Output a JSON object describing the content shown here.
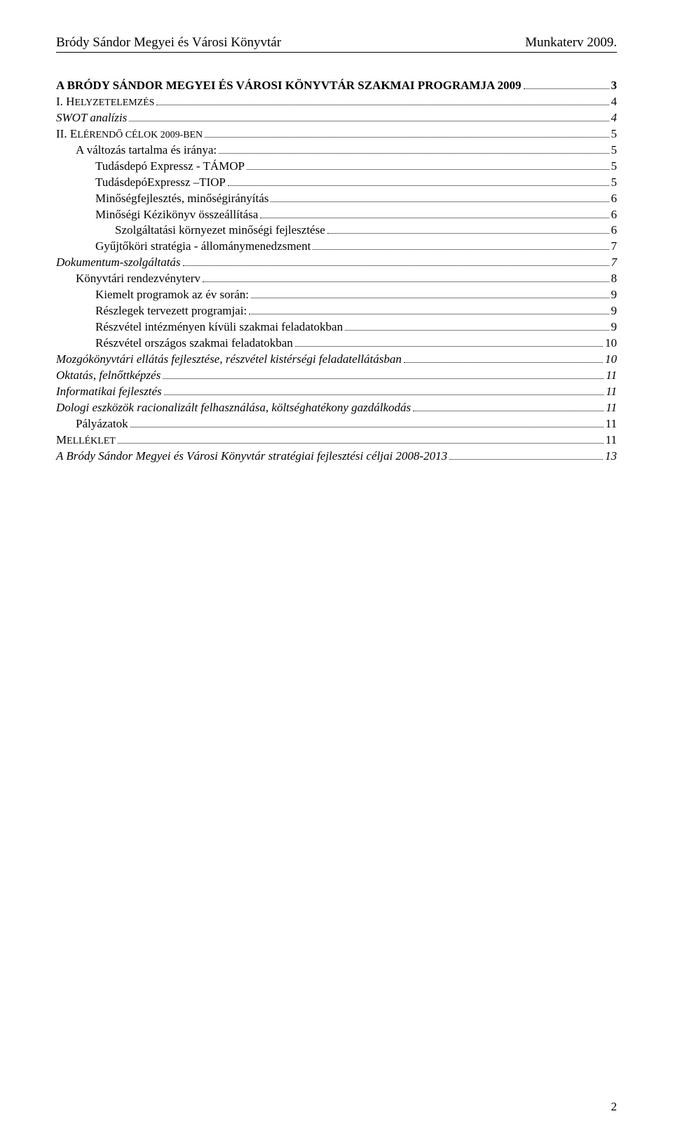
{
  "header": {
    "left": "Bródy Sándor Megyei és Városi Könyvtár",
    "right": "Munkaterv 2009."
  },
  "toc": [
    {
      "label": "A BRÓDY SÁNDOR MEGYEI ÉS VÁROSI KÖNYVTÁR SZAKMAI PROGRAMJA 2009",
      "page": "3",
      "indent": 0,
      "bold": true
    },
    {
      "label": "I. HELYZETELEMZÉS",
      "page": "4",
      "indent": 0,
      "smallcaps": true,
      "prefix": "I. H",
      "rest": "ELYZETELEMZÉS"
    },
    {
      "label": "SWOT analízis",
      "page": "4",
      "indent": 0,
      "italic": true
    },
    {
      "label": "II. ELÉRENDŐ CÉLOK 2009-BEN",
      "page": "5",
      "indent": 0,
      "smallcaps": true,
      "prefix": "II. E",
      "rest": "LÉRENDŐ CÉLOK 2009-BEN"
    },
    {
      "label": "A változás tartalma és iránya:",
      "page": "5",
      "indent": 1
    },
    {
      "label": "Tudásdepó Expressz - TÁMOP",
      "page": "5",
      "indent": 2
    },
    {
      "label": "TudásdepóExpressz –TIOP",
      "page": "5",
      "indent": 2
    },
    {
      "label": "Minőségfejlesztés, minőségirányítás",
      "page": "6",
      "indent": 2
    },
    {
      "label": "Minőségi Kézikönyv összeállítása",
      "page": "6",
      "indent": 2
    },
    {
      "label": "Szolgáltatási környezet minőségi fejlesztése",
      "page": "6",
      "indent": 3
    },
    {
      "label": "Gyűjtőköri stratégia - állománymenedzsment",
      "page": "7",
      "indent": 2
    },
    {
      "label": "Dokumentum-szolgáltatás",
      "page": "7",
      "indent": 0,
      "italic": true
    },
    {
      "label": "Könyvtári rendezvényterv",
      "page": "8",
      "indent": 1
    },
    {
      "label": "Kiemelt programok az év során:",
      "page": "9",
      "indent": 2
    },
    {
      "label": "Részlegek tervezett programjai:",
      "page": "9",
      "indent": 2
    },
    {
      "label": "Részvétel intézményen kívüli szakmai feladatokban",
      "page": "9",
      "indent": 2
    },
    {
      "label": "Részvétel országos szakmai feladatokban",
      "page": "10",
      "indent": 2
    },
    {
      "label": "Mozgókönyvtári ellátás fejlesztése, részvétel kistérségi feladatellátásban",
      "page": "10",
      "indent": 0,
      "italic": true
    },
    {
      "label": "Oktatás, felnőttképzés",
      "page": "11",
      "indent": 0,
      "italic": true
    },
    {
      "label": "Informatikai fejlesztés",
      "page": "11",
      "indent": 0,
      "italic": true
    },
    {
      "label": "Dologi eszközök racionalizált felhasználása, költséghatékony gazdálkodás",
      "page": "11",
      "indent": 0,
      "italic": true
    },
    {
      "label": "Pályázatok",
      "page": "11",
      "indent": 1
    },
    {
      "label": "MELLÉKLET",
      "page": "11",
      "indent": 0,
      "smallcaps": true,
      "prefix": "M",
      "rest": "ELLÉKLET"
    },
    {
      "label": "A Bródy Sándor Megyei és Városi Könyvtár stratégiai fejlesztési céljai 2008-2013",
      "page": "13",
      "indent": 0,
      "italic": true,
      "pageOverride": "13"
    }
  ],
  "footer": {
    "pageNumber": "2"
  }
}
